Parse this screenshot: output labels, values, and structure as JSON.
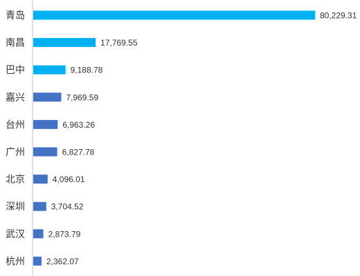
{
  "chart_data": {
    "type": "bar",
    "orientation": "horizontal",
    "categories": [
      "青岛",
      "南昌",
      "巴中",
      "嘉兴",
      "台州",
      "广州",
      "北京",
      "深圳",
      "武汉",
      "杭州"
    ],
    "values": [
      80229.31,
      17769.55,
      9188.78,
      7969.59,
      6963.26,
      6827.78,
      4096.01,
      3704.52,
      2873.79,
      2362.07
    ],
    "value_labels": [
      "80,229.31",
      "17,769.55",
      "9,188.78",
      "7,969.59",
      "6,963.26",
      "6,827.78",
      "4,096.01",
      "3,704.52",
      "2,873.79",
      "2,362.07"
    ],
    "bar_colors": [
      "#00B0F0",
      "#00B0F0",
      "#00B0F0",
      "#4472C4",
      "#4472C4",
      "#4472C4",
      "#4472C4",
      "#4472C4",
      "#4472C4",
      "#4472C4"
    ],
    "xlim": [
      0,
      80229.31
    ],
    "grid": false,
    "legend": "none",
    "title": "",
    "xlabel": "",
    "ylabel": ""
  }
}
